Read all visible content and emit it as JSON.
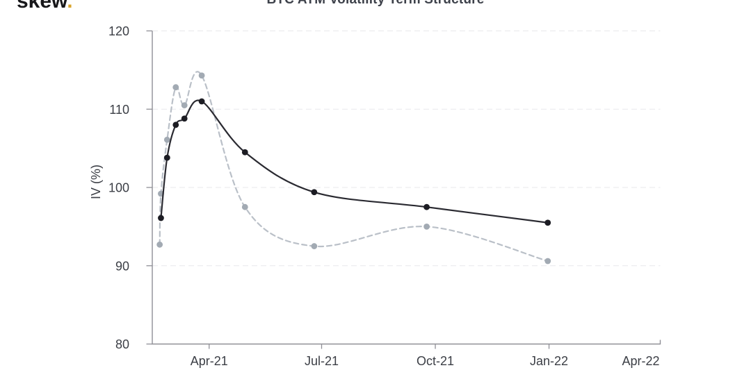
{
  "brand": {
    "logo_text": "skew",
    "logo_dot": ".",
    "logo_dot_color": "#d9a42c"
  },
  "chart_data": {
    "type": "line",
    "title": "BTC ATM Volatility Term Structure",
    "ylabel": "IV (%)",
    "ylim": [
      80,
      120
    ],
    "y_ticks": [
      80,
      90,
      100,
      110,
      120
    ],
    "x_range": [
      "2021-02-14",
      "2022-04-01"
    ],
    "x_ticks": [
      {
        "label": "Apr-21",
        "date": "2021-04-01"
      },
      {
        "label": "Jul-21",
        "date": "2021-07-01"
      },
      {
        "label": "Oct-21",
        "date": "2021-10-01"
      },
      {
        "label": "Jan-22",
        "date": "2022-01-01"
      },
      {
        "label": "Apr-22",
        "date": "2022-04-01"
      }
    ],
    "grid": "horizontal dashed",
    "legend": null,
    "axis_color": "#8f8f96",
    "grid_color": "#e8e8eb",
    "label_color": "#3b3e45",
    "series": [
      {
        "name": "solid-dark-term-structure",
        "line_style": "solid",
        "line_color": "#2a2a31",
        "marker_color": "#1c1c23",
        "x": [
          "2021-02-21",
          "2021-02-26",
          "2021-03-05",
          "2021-03-12",
          "2021-03-26",
          "2021-04-30",
          "2021-06-25",
          "2021-09-24",
          "2021-12-31"
        ],
        "values": [
          96.1,
          103.8,
          108.0,
          108.8,
          111.0,
          104.5,
          99.4,
          97.5,
          95.5
        ]
      },
      {
        "name": "dashed-gray-term-structure",
        "line_style": "dashed",
        "line_color": "#bac0c8",
        "marker_color": "#a2aab3",
        "x": [
          "2021-02-20",
          "2021-02-21",
          "2021-02-26",
          "2021-03-05",
          "2021-03-12",
          "2021-03-26",
          "2021-04-30",
          "2021-06-25",
          "2021-09-24",
          "2021-12-31"
        ],
        "values": [
          92.7,
          99.2,
          106.1,
          112.8,
          110.5,
          114.3,
          97.5,
          92.5,
          95.0,
          90.6
        ]
      }
    ]
  }
}
